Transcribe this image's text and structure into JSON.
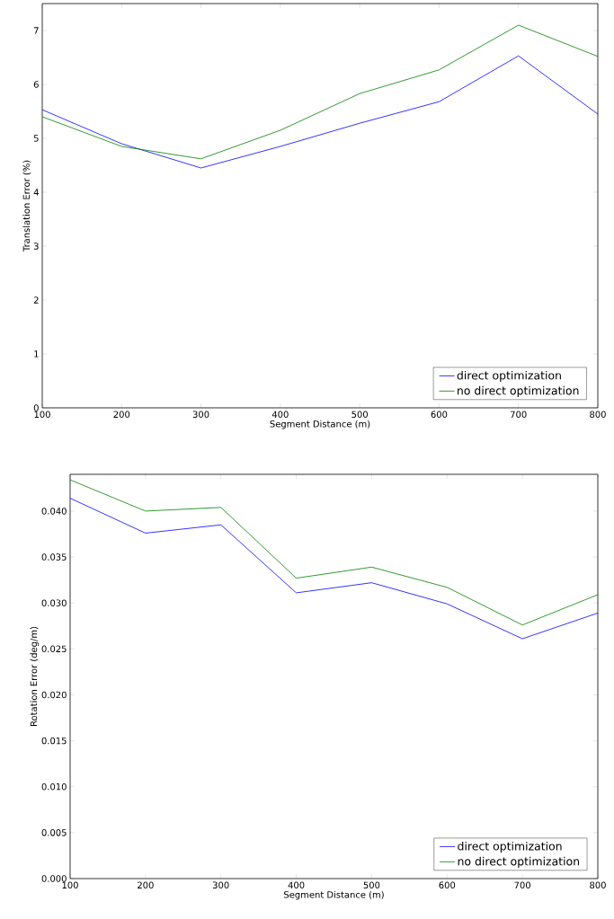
{
  "chart_data": [
    {
      "type": "line",
      "xlabel": "Segment Distance (m)",
      "ylabel": "Translation Error (%)",
      "x": [
        100,
        200,
        300,
        400,
        500,
        600,
        700,
        800
      ],
      "xlim": [
        100,
        800
      ],
      "ylim": [
        0,
        7.5
      ],
      "xticks": [
        100,
        200,
        300,
        400,
        500,
        600,
        700,
        800
      ],
      "yticks": [
        0,
        1,
        2,
        3,
        4,
        5,
        6,
        7
      ],
      "legend": "bottom right",
      "series": [
        {
          "name": "direct optimization",
          "color": "#0000ff",
          "values": [
            5.53,
            4.9,
            4.45,
            4.85,
            5.28,
            5.68,
            6.53,
            5.45
          ]
        },
        {
          "name": "no direct optimization",
          "color": "#008000",
          "values": [
            5.4,
            4.85,
            4.62,
            5.15,
            5.83,
            6.27,
            7.1,
            6.52
          ]
        }
      ]
    },
    {
      "type": "line",
      "xlabel": "Segment Distance (m)",
      "ylabel": "Rotation Error (deg/m)",
      "x": [
        100,
        200,
        300,
        400,
        500,
        600,
        700,
        800
      ],
      "xlim": [
        100,
        800
      ],
      "ylim": [
        0,
        0.044
      ],
      "xticks": [
        100,
        200,
        300,
        400,
        500,
        600,
        700,
        800
      ],
      "yticks": [
        {
          "value": 0,
          "label": "0.000"
        },
        {
          "value": 0.005,
          "label": "0.005"
        },
        {
          "value": 0.01,
          "label": "0.010"
        },
        {
          "value": 0.015,
          "label": "0.015"
        },
        {
          "value": 0.02,
          "label": "0.020"
        },
        {
          "value": 0.025,
          "label": "0.025"
        },
        {
          "value": 0.03,
          "label": "0.030"
        },
        {
          "value": 0.035,
          "label": "0.035"
        },
        {
          "value": 0.04,
          "label": "0.040"
        }
      ],
      "legend": "bottom right",
      "series": [
        {
          "name": "direct optimization",
          "color": "#0000ff",
          "values": [
            0.0414,
            0.0376,
            0.0385,
            0.0311,
            0.0322,
            0.0299,
            0.0261,
            0.0289
          ]
        },
        {
          "name": "no direct optimization",
          "color": "#008000",
          "values": [
            0.0434,
            0.04,
            0.0404,
            0.0327,
            0.0339,
            0.0317,
            0.0276,
            0.0309
          ]
        }
      ]
    }
  ]
}
